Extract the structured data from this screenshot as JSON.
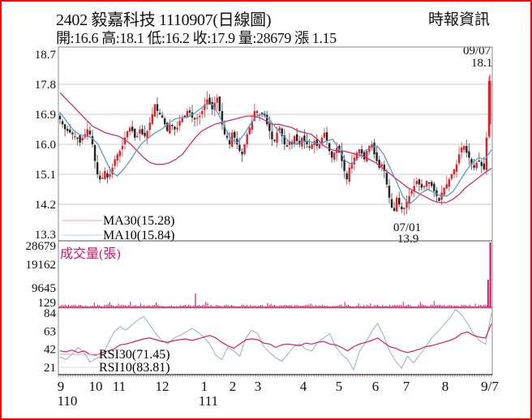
{
  "header": {
    "title": "2402  毅嘉科技 1110907(日線圖)",
    "summary": "開:16.6 高:18.1 低:16.2 收:17.9 量:28679 漲 1.15",
    "brand": "時報資訊"
  },
  "quote": {
    "code": "2402",
    "name": "毅嘉科技",
    "date": "1110907",
    "period": "日線圖",
    "open": 16.6,
    "high": 18.1,
    "low": 16.2,
    "close": 17.9,
    "volume": 28679,
    "change": 1.15
  },
  "colors": {
    "frame": "#ff0000",
    "up": "#e0202a",
    "down": "#222222",
    "ma30": "#d0306a",
    "ma10": "#5b9bc8",
    "volume": "#d0186a",
    "rsi30": "#d81e5b",
    "rsi10": "#8fb0cc",
    "grid": "#cccccc"
  },
  "chart_data": [
    {
      "type": "candlestick",
      "title": "2402 毅嘉科技 1110907(日線圖)",
      "ylim": [
        13.3,
        18.7
      ],
      "yticks": [
        18.7,
        17.8,
        16.9,
        16.0,
        15.1,
        14.2,
        13.3
      ],
      "ytick_labels": [
        "18.7",
        "17.8",
        "16.9",
        "16.0",
        "15.1",
        "14.2",
        "13.3"
      ],
      "grid": true,
      "annotations": [
        {
          "label_top": "09/07",
          "label_bottom": "18.1",
          "note": "high"
        },
        {
          "label_top": "07/01",
          "label_bottom": "13.9",
          "note": "low"
        }
      ],
      "legend": [
        {
          "name": "MA30",
          "label": "MA30(15.28)",
          "value": 15.28
        },
        {
          "name": "MA10",
          "label": "MA10(15.84)",
          "value": 15.84
        }
      ],
      "price_path": [
        16.75,
        16.6,
        16.45,
        16.4,
        16.35,
        16.3,
        16.25,
        16.2,
        16.05,
        16.2,
        16.3,
        16.45,
        16.3,
        16.0,
        15.5,
        15.1,
        14.95,
        15.0,
        15.2,
        15.0,
        15.1,
        15.3,
        15.55,
        15.7,
        15.8,
        15.95,
        16.2,
        16.4,
        16.5,
        16.4,
        16.2,
        16.25,
        16.45,
        16.3,
        16.25,
        16.4,
        16.65,
        16.9,
        17.2,
        17.0,
        16.9,
        16.8,
        16.6,
        16.4,
        16.6,
        16.55,
        16.45,
        16.5,
        16.7,
        16.8,
        16.85,
        17.0,
        16.95,
        16.8,
        16.75,
        16.8,
        16.85,
        17.0,
        17.2,
        17.35,
        17.2,
        17.05,
        17.25,
        17.4,
        17.0,
        16.6,
        16.3,
        16.2,
        16.0,
        16.35,
        16.2,
        16.0,
        15.8,
        15.7,
        16.0,
        16.3,
        16.5,
        16.7,
        17.0,
        16.95,
        16.9,
        16.95,
        16.85,
        16.6,
        16.4,
        16.15,
        16.1,
        16.35,
        16.5,
        16.25,
        16.0,
        15.95,
        16.1,
        16.0,
        16.25,
        16.1,
        16.0,
        16.2,
        16.1,
        16.0,
        15.9,
        16.0,
        16.1,
        15.95,
        16.0,
        16.2,
        16.35,
        16.1,
        15.8,
        15.6,
        15.75,
        15.9,
        15.75,
        15.5,
        15.2,
        14.95,
        15.3,
        15.45,
        15.6,
        15.75,
        15.85,
        15.7,
        15.55,
        15.8,
        15.95,
        16.0,
        15.7,
        15.5,
        15.3,
        15.4,
        15.2,
        14.8,
        14.4,
        14.1,
        14.0,
        14.4,
        14.2,
        14.05,
        14.1,
        14.3,
        14.45,
        14.6,
        14.75,
        14.9,
        14.8,
        14.7,
        14.75,
        14.9,
        14.85,
        14.75,
        14.6,
        14.45,
        14.3,
        14.55,
        14.7,
        14.8,
        14.95,
        15.1,
        15.25,
        15.4,
        15.7,
        15.9,
        15.95,
        15.75,
        15.6,
        15.4,
        15.3,
        15.45,
        15.5,
        15.35,
        15.25,
        16.2,
        17.9
      ],
      "ma30_path": [
        17.55,
        17.35,
        17.15,
        16.95,
        16.75,
        16.55,
        16.45,
        16.35,
        16.3,
        16.25,
        16.15,
        16.0,
        15.8,
        15.6,
        15.45,
        15.4,
        15.4,
        15.45,
        15.55,
        15.7,
        15.95,
        16.2,
        16.4,
        16.5,
        16.6,
        16.65,
        16.7,
        16.75,
        16.8,
        16.85,
        16.85,
        16.8,
        16.7,
        16.6,
        16.6,
        16.55,
        16.5,
        16.4,
        16.35,
        16.3,
        16.15,
        15.95,
        15.85,
        15.8,
        15.8,
        15.75,
        15.7,
        15.65,
        15.55,
        15.45,
        15.3,
        15.15,
        15.0,
        14.85,
        14.7,
        14.6,
        14.5,
        14.4,
        14.3,
        14.25,
        14.25,
        14.35,
        14.5,
        14.7,
        14.85,
        15.0,
        15.15,
        15.28
      ],
      "ma10_path": [
        16.95,
        16.7,
        16.45,
        16.3,
        16.25,
        16.2,
        16.0,
        15.6,
        15.2,
        15.05,
        15.25,
        15.5,
        15.8,
        16.05,
        16.2,
        16.35,
        16.45,
        16.6,
        16.75,
        16.8,
        16.8,
        16.9,
        17.05,
        17.2,
        17.2,
        16.9,
        16.5,
        16.15,
        16.05,
        16.3,
        16.6,
        16.85,
        16.9,
        16.75,
        16.5,
        16.3,
        16.1,
        16.0,
        16.05,
        16.1,
        16.05,
        16.0,
        16.1,
        16.15,
        15.85,
        15.5,
        15.4,
        15.6,
        15.8,
        15.9,
        15.95,
        15.7,
        15.3,
        14.9,
        14.45,
        14.2,
        14.35,
        14.55,
        14.65,
        14.55,
        14.45,
        14.45,
        14.6,
        14.9,
        15.2,
        15.45,
        15.6,
        15.55,
        15.84
      ]
    },
    {
      "type": "bar",
      "title": "成交量(張)",
      "ylim": [
        0,
        28679
      ],
      "yticks": [
        28679,
        19162,
        9645,
        129
      ],
      "ytick_labels": [
        "28679",
        "19162",
        "9645",
        "129"
      ],
      "values_summary": "Low baseline volume (~200-900 張) across period; spike ~3900 near Jan; final day 28679 張, prior day ~9700",
      "last_values": [
        9700,
        28679
      ]
    },
    {
      "type": "line",
      "title": "RSI",
      "ylim": [
        10,
        90
      ],
      "yticks": [
        84,
        63,
        42,
        21
      ],
      "ytick_labels": [
        "84",
        "63",
        "42",
        "21"
      ],
      "legend": [
        {
          "name": "RSI30",
          "label": "RSI30(71.45)",
          "value": 71.45
        },
        {
          "name": "RSI10",
          "label": "RSI10(83.81)",
          "value": 83.81
        }
      ],
      "rsi30_path": [
        40,
        39,
        41,
        38,
        40,
        36,
        35,
        38,
        40,
        42,
        47,
        48,
        50,
        52,
        54,
        55,
        53,
        51,
        50,
        52,
        53,
        54,
        52,
        54,
        56,
        58,
        55,
        50,
        46,
        43,
        48,
        53,
        54,
        53,
        49,
        48,
        44,
        47,
        48,
        47,
        46,
        49,
        48,
        50,
        51,
        48,
        47,
        44,
        40,
        45,
        48,
        50,
        52,
        55,
        50,
        45,
        43,
        40,
        38,
        40,
        42,
        45,
        46,
        48,
        50,
        52,
        55,
        60,
        62,
        58,
        56,
        55,
        71.45
      ],
      "rsi10_path": [
        33,
        30,
        36,
        44,
        38,
        27,
        31,
        35,
        48,
        62,
        68,
        64,
        70,
        76,
        80,
        70,
        60,
        52,
        48,
        55,
        58,
        62,
        66,
        62,
        56,
        48,
        35,
        30,
        44,
        40,
        34,
        55,
        64,
        60,
        45,
        38,
        32,
        28,
        36,
        45,
        48,
        42,
        40,
        50,
        55,
        60,
        45,
        36,
        30,
        18,
        40,
        50,
        62,
        72,
        58,
        40,
        28,
        20,
        34,
        26,
        35,
        44,
        55,
        62,
        70,
        78,
        88,
        82,
        72,
        60,
        52,
        48,
        83.81
      ]
    }
  ],
  "xaxis": {
    "ticks": [
      {
        "label": "9",
        "year": "110"
      },
      {
        "label": "10",
        "year": ""
      },
      {
        "label": "11",
        "year": ""
      },
      {
        "label": "12",
        "year": ""
      },
      {
        "label": "1",
        "year": "111"
      },
      {
        "label": "2",
        "year": ""
      },
      {
        "label": "3",
        "year": ""
      },
      {
        "label": "4",
        "year": ""
      },
      {
        "label": "5",
        "year": ""
      },
      {
        "label": "6",
        "year": ""
      },
      {
        "label": "7",
        "year": ""
      },
      {
        "label": "8",
        "year": ""
      },
      {
        "label": "9/7",
        "year": ""
      }
    ]
  },
  "price_panel": {
    "high_annotation": {
      "date": "09/07",
      "value": "18.1"
    },
    "low_annotation": {
      "date": "07/01",
      "value": "13.9"
    },
    "ma30_label": "MA30(15.28)",
    "ma10_label": "MA10(15.84)"
  },
  "volume_panel": {
    "label": "成交量(張)"
  },
  "rsi_panel": {
    "rsi30_label": "RSI30(71.45)",
    "rsi10_label": "RSI10(83.81)"
  }
}
